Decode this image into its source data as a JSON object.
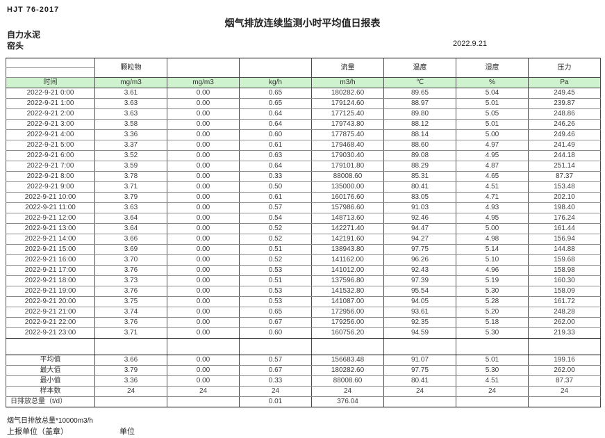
{
  "page": {
    "standard_code": "HJT  76-2017",
    "title": "烟气排放连续监测小时平均值日报表",
    "company": "自力水泥",
    "station": "窑头",
    "date": "2022.9.21"
  },
  "colors": {
    "header_green": "#cdf2cd"
  },
  "table": {
    "pollutants": [
      "颗粒物",
      "",
      "",
      "流量",
      "温度",
      "湿度",
      "压力"
    ],
    "units": [
      "时间",
      "mg/m3",
      "mg/m3",
      "kg/h",
      "m3/h",
      "℃",
      "%",
      "Pa"
    ],
    "rows": [
      {
        "time": "2022-9-21 0:00",
        "values": [
          "3.61",
          "0.00",
          "0.65",
          "180282.60",
          "89.65",
          "5.04",
          "249.45"
        ]
      },
      {
        "time": "2022-9-21 1:00",
        "values": [
          "3.63",
          "0.00",
          "0.65",
          "179124.60",
          "88.97",
          "5.01",
          "239.87"
        ]
      },
      {
        "time": "2022-9-21 2:00",
        "values": [
          "3.63",
          "0.00",
          "0.64",
          "177125.40",
          "89.80",
          "5.05",
          "248.86"
        ]
      },
      {
        "time": "2022-9-21 3:00",
        "values": [
          "3.58",
          "0.00",
          "0.64",
          "179743.80",
          "88.12",
          "5.01",
          "246.26"
        ]
      },
      {
        "time": "2022-9-21 4:00",
        "values": [
          "3.36",
          "0.00",
          "0.60",
          "177875.40",
          "88.14",
          "5.00",
          "249.46"
        ]
      },
      {
        "time": "2022-9-21 5:00",
        "values": [
          "3.37",
          "0.00",
          "0.61",
          "179468.40",
          "88.60",
          "4.97",
          "241.49"
        ]
      },
      {
        "time": "2022-9-21 6:00",
        "values": [
          "3.52",
          "0.00",
          "0.63",
          "179030.40",
          "89.08",
          "4.95",
          "244.18"
        ]
      },
      {
        "time": "2022-9-21 7:00",
        "values": [
          "3.59",
          "0.00",
          "0.64",
          "179101.80",
          "88.29",
          "4.87",
          "251.14"
        ]
      },
      {
        "time": "2022-9-21 8:00",
        "values": [
          "3.78",
          "0.00",
          "0.33",
          "88008.60",
          "85.31",
          "4.65",
          "87.37"
        ]
      },
      {
        "time": "2022-9-21 9:00",
        "values": [
          "3.71",
          "0.00",
          "0.50",
          "135000.00",
          "80.41",
          "4.51",
          "153.48"
        ]
      },
      {
        "time": "2022-9-21 10:00",
        "values": [
          "3.79",
          "0.00",
          "0.61",
          "160176.60",
          "83.05",
          "4.71",
          "202.10"
        ]
      },
      {
        "time": "2022-9-21 11:00",
        "values": [
          "3.63",
          "0.00",
          "0.57",
          "157986.60",
          "91.03",
          "4.93",
          "198.40"
        ]
      },
      {
        "time": "2022-9-21 12:00",
        "values": [
          "3.64",
          "0.00",
          "0.54",
          "148713.60",
          "92.46",
          "4.95",
          "176.24"
        ]
      },
      {
        "time": "2022-9-21 13:00",
        "values": [
          "3.64",
          "0.00",
          "0.52",
          "142271.40",
          "94.47",
          "5.00",
          "161.44"
        ]
      },
      {
        "time": "2022-9-21 14:00",
        "values": [
          "3.66",
          "0.00",
          "0.52",
          "142191.60",
          "94.27",
          "4.98",
          "156.94"
        ]
      },
      {
        "time": "2022-9-21 15:00",
        "values": [
          "3.69",
          "0.00",
          "0.51",
          "138943.80",
          "97.75",
          "5.14",
          "144.88"
        ]
      },
      {
        "time": "2022-9-21 16:00",
        "values": [
          "3.70",
          "0.00",
          "0.52",
          "141162.00",
          "96.26",
          "5.10",
          "159.68"
        ]
      },
      {
        "time": "2022-9-21 17:00",
        "values": [
          "3.76",
          "0.00",
          "0.53",
          "141012.00",
          "92.43",
          "4.96",
          "158.98"
        ]
      },
      {
        "time": "2022-9-21 18:00",
        "values": [
          "3.73",
          "0.00",
          "0.51",
          "137596.80",
          "97.39",
          "5.19",
          "160.30"
        ]
      },
      {
        "time": "2022-9-21 19:00",
        "values": [
          "3.76",
          "0.00",
          "0.53",
          "141532.80",
          "95.54",
          "5.30",
          "158.09"
        ]
      },
      {
        "time": "2022-9-21 20:00",
        "values": [
          "3.75",
          "0.00",
          "0.53",
          "141087.00",
          "94.05",
          "5.28",
          "161.72"
        ]
      },
      {
        "time": "2022-9-21 21:00",
        "values": [
          "3.74",
          "0.00",
          "0.65",
          "172956.00",
          "93.61",
          "5.20",
          "248.28"
        ]
      },
      {
        "time": "2022-9-21 22:00",
        "values": [
          "3.76",
          "0.00",
          "0.67",
          "179256.00",
          "92.35",
          "5.18",
          "262.00"
        ]
      },
      {
        "time": "2022-9-21 23:00",
        "values": [
          "3.71",
          "0.00",
          "0.60",
          "160756.20",
          "94.59",
          "5.30",
          "219.33"
        ]
      }
    ],
    "summary": [
      {
        "label": "平均值",
        "values": [
          "3.66",
          "0.00",
          "0.57",
          "156683.48",
          "91.07",
          "5.01",
          "199.16"
        ]
      },
      {
        "label": "最大值",
        "values": [
          "3.79",
          "0.00",
          "0.67",
          "180282.60",
          "97.75",
          "5.30",
          "262.00"
        ]
      },
      {
        "label": "最小值",
        "values": [
          "3.36",
          "0.00",
          "0.33",
          "88008.60",
          "80.41",
          "4.51",
          "87.37"
        ]
      },
      {
        "label": "样本数",
        "values": [
          "24",
          "24",
          "24",
          "24",
          "24",
          "24",
          "24"
        ]
      },
      {
        "label": "日排放总量（t/d）",
        "values": [
          "",
          "",
          "0.01",
          "376.04",
          "",
          "",
          ""
        ]
      }
    ]
  },
  "footer": {
    "note": "烟气日排放总量*10000m3/h",
    "report_unit_label": "上报单位（盖章）",
    "unit_label": "单位"
  }
}
